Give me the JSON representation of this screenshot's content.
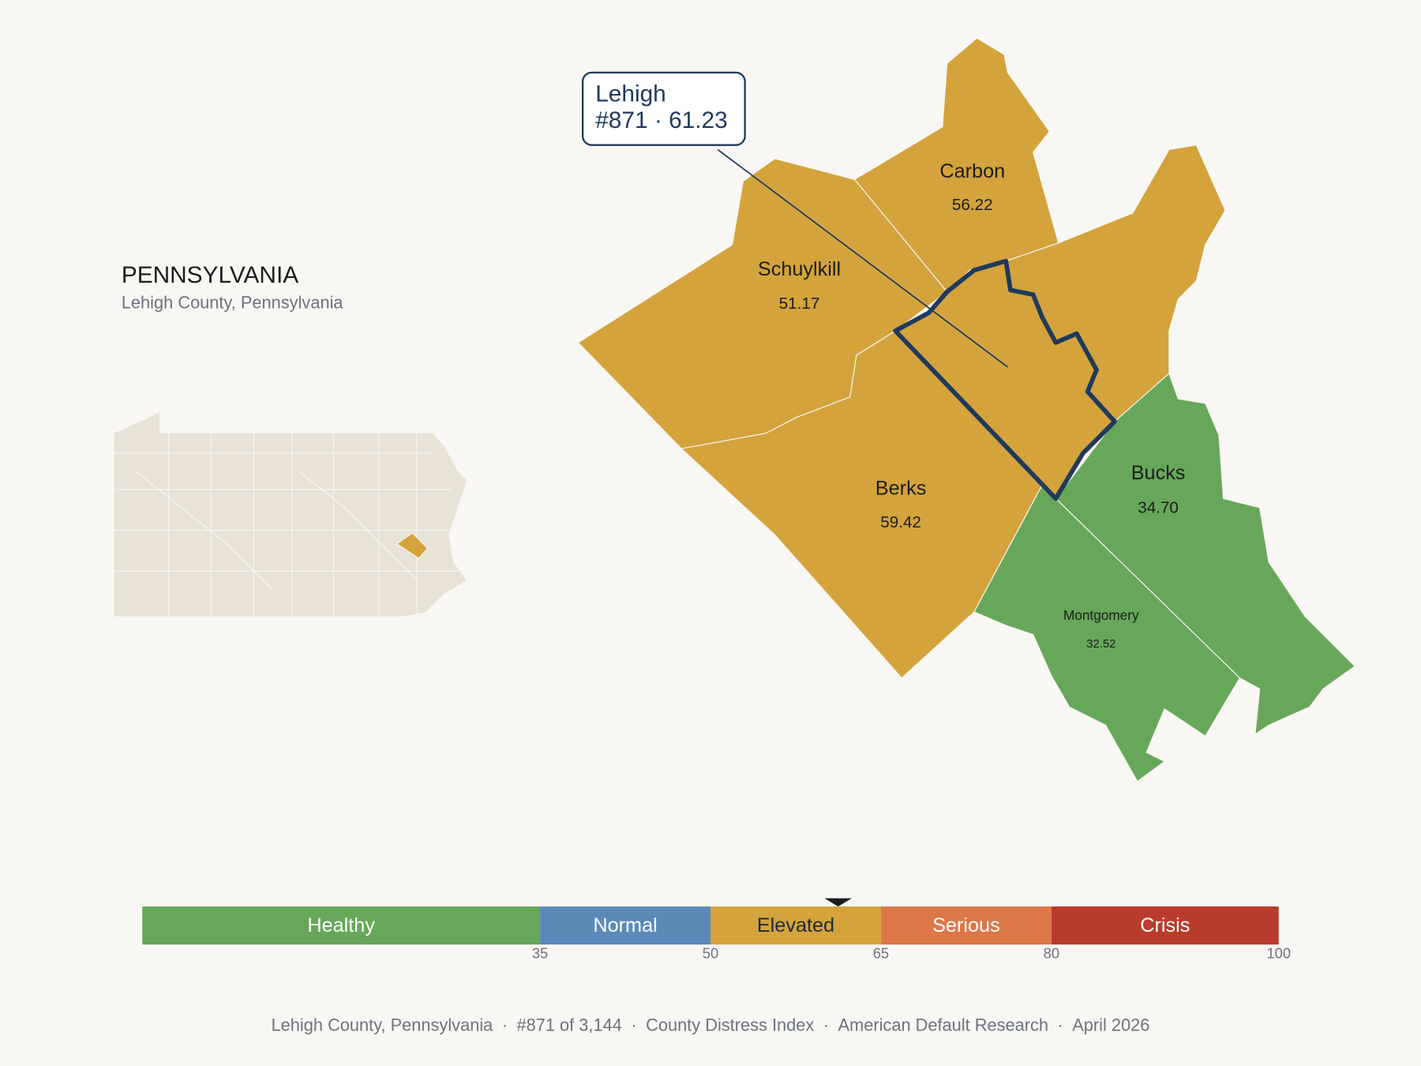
{
  "header": {
    "title": "PENNSYLVANIA",
    "subtitle": "Lehigh County, Pennsylvania"
  },
  "counties": [
    {
      "name": "Carbon",
      "score": 56.22
    },
    {
      "name": "Schuylkill",
      "score": 51.17
    },
    {
      "name": "Berks",
      "score": 59.42
    },
    {
      "name": "Bucks",
      "score": {
        "value": 34.7,
        "label": "34.70"
      }
    },
    {
      "name": "Montgomery",
      "score": 32.52
    }
  ],
  "callout": {
    "name": "Lehigh",
    "rank": "#871",
    "separator": "·",
    "score": 61.23
  },
  "scale": {
    "lim": [
      0,
      100
    ],
    "ticks": [
      35,
      50,
      65,
      80,
      100
    ],
    "bands": [
      {
        "name": "Healthy",
        "color": "#67a75a",
        "text_color": "#ffffff"
      },
      {
        "name": "Normal",
        "color": "#5b8ab9",
        "text_color": "#ffffff"
      },
      {
        "name": "Elevated",
        "color": "#d4a33c",
        "text_color": "#1f2a36"
      },
      {
        "name": "Serious",
        "color": "#dc7848",
        "text_color": "#ffffff"
      },
      {
        "name": "Crisis",
        "color": "#b83c2b",
        "text_color": "#ffffff"
      }
    ]
  },
  "footer": {
    "separator": "·",
    "parts": [
      "Lehigh County, Pennsylvania",
      "#871 of 3,144",
      "County Distress Index",
      "American Default Research",
      "April 2026"
    ]
  }
}
